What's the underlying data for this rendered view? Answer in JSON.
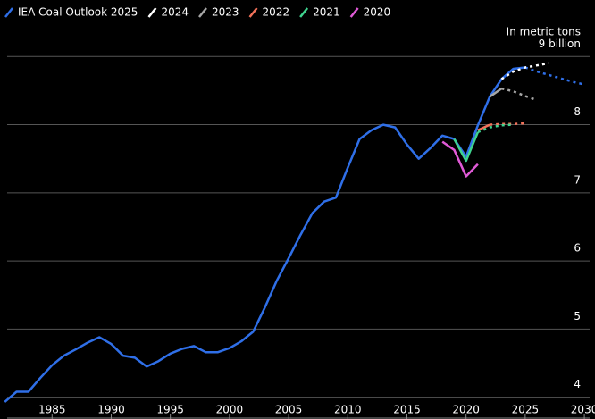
{
  "chart_data": {
    "type": "line",
    "annotation": "In metric tons",
    "xlim": [
      1980.6,
      2030.9
    ],
    "ylim": [
      3.68,
      9.83
    ],
    "xticks": [
      1985,
      1990,
      1995,
      2000,
      2005,
      2010,
      2015,
      2020,
      2025,
      2030
    ],
    "yticks": [
      4,
      5,
      6,
      7,
      8,
      {
        "value": 9,
        "label": "9 billion"
      }
    ],
    "grid": true,
    "legend": "top-left",
    "series": [
      {
        "name": "IEA Coal Outlook 2025",
        "color": "#2f6fe8",
        "forecast_from": 2025,
        "x": [
          1981,
          1982,
          1983,
          1984,
          1985,
          1986,
          1987,
          1988,
          1989,
          1990,
          1991,
          1992,
          1993,
          1994,
          1995,
          1996,
          1997,
          1998,
          1999,
          2000,
          2001,
          2002,
          2003,
          2004,
          2005,
          2006,
          2007,
          2008,
          2009,
          2010,
          2011,
          2012,
          2013,
          2014,
          2015,
          2016,
          2017,
          2018,
          2019,
          2020,
          2021,
          2022,
          2023,
          2024,
          2025,
          2026,
          2027,
          2028,
          2029,
          2030
        ],
        "values": [
          3.93,
          4.08,
          4.08,
          4.28,
          4.47,
          4.61,
          4.7,
          4.8,
          4.88,
          4.78,
          4.61,
          4.58,
          4.45,
          4.53,
          4.64,
          4.71,
          4.75,
          4.66,
          4.66,
          4.72,
          4.82,
          4.96,
          5.32,
          5.71,
          6.04,
          6.38,
          6.7,
          6.87,
          6.93,
          7.37,
          7.79,
          7.92,
          8.0,
          7.96,
          7.71,
          7.5,
          7.66,
          7.84,
          7.79,
          7.53,
          7.99,
          8.41,
          8.67,
          8.82,
          8.84,
          8.78,
          8.73,
          8.68,
          8.63,
          8.59
        ]
      },
      {
        "name": "2024",
        "color": "#ffffff",
        "forecast_from": 2023,
        "x": [
          2023,
          2024,
          2025,
          2026,
          2027
        ],
        "values": [
          8.67,
          8.78,
          8.84,
          8.87,
          8.9
        ]
      },
      {
        "name": "2023",
        "color": "#a6a6a6",
        "forecast_from": 2023,
        "x": [
          2022,
          2023,
          2024,
          2025,
          2026
        ],
        "values": [
          8.41,
          8.53,
          8.49,
          8.42,
          8.36
        ]
      },
      {
        "name": "2022",
        "color": "#f2725a",
        "forecast_from": 2022,
        "x": [
          2021,
          2022,
          2023,
          2024,
          2025
        ],
        "values": [
          7.92,
          8.0,
          8.01,
          8.01,
          8.02
        ]
      },
      {
        "name": "2021",
        "color": "#3fd48f",
        "forecast_from": 2021,
        "x": [
          2019,
          2020,
          2021,
          2022,
          2023,
          2024
        ],
        "values": [
          7.79,
          7.47,
          7.89,
          7.96,
          7.99,
          8.0
        ]
      },
      {
        "name": "2020",
        "color": "#e05ad6",
        "x": [
          2018,
          2019,
          2020,
          2021
        ],
        "values": [
          7.75,
          7.63,
          7.24,
          7.42
        ]
      }
    ]
  }
}
